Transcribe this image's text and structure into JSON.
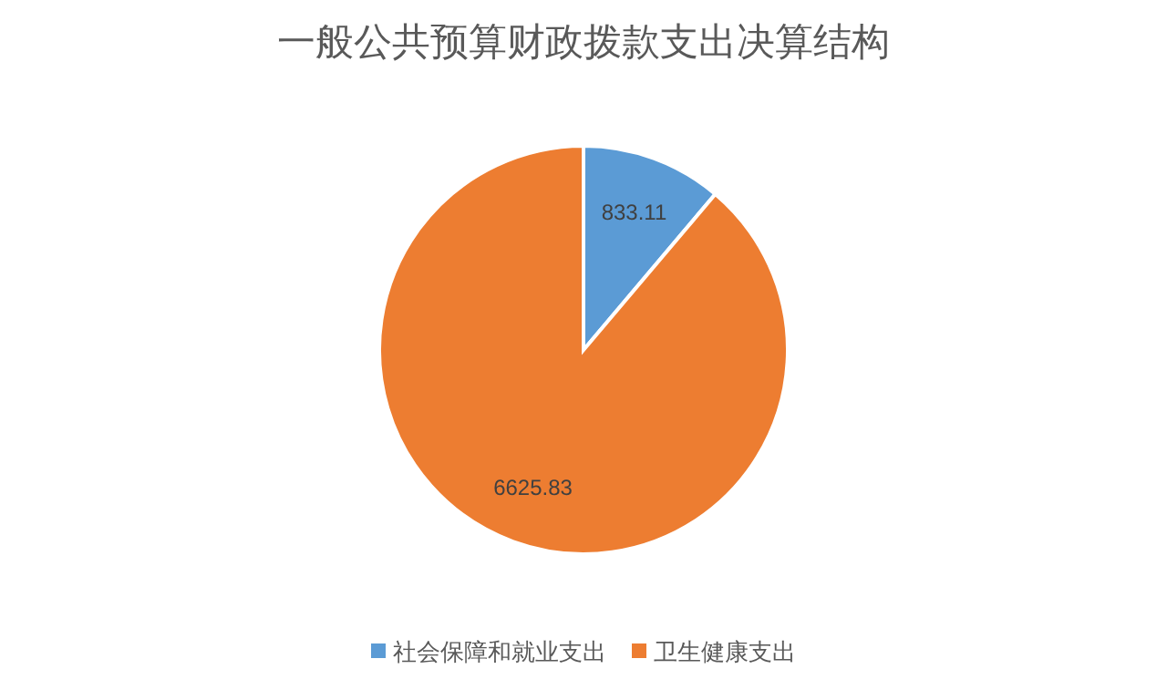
{
  "chart_data": {
    "type": "pie",
    "title": "一般公共预算财政拨款支出决算结构",
    "categories": [
      "社会保障和就业支出",
      "卫生健康支出"
    ],
    "values": [
      833.11,
      6625.83
    ],
    "colors": [
      "#5b9bd5",
      "#ed7d31"
    ],
    "data_labels": true,
    "legend": "bottom"
  }
}
